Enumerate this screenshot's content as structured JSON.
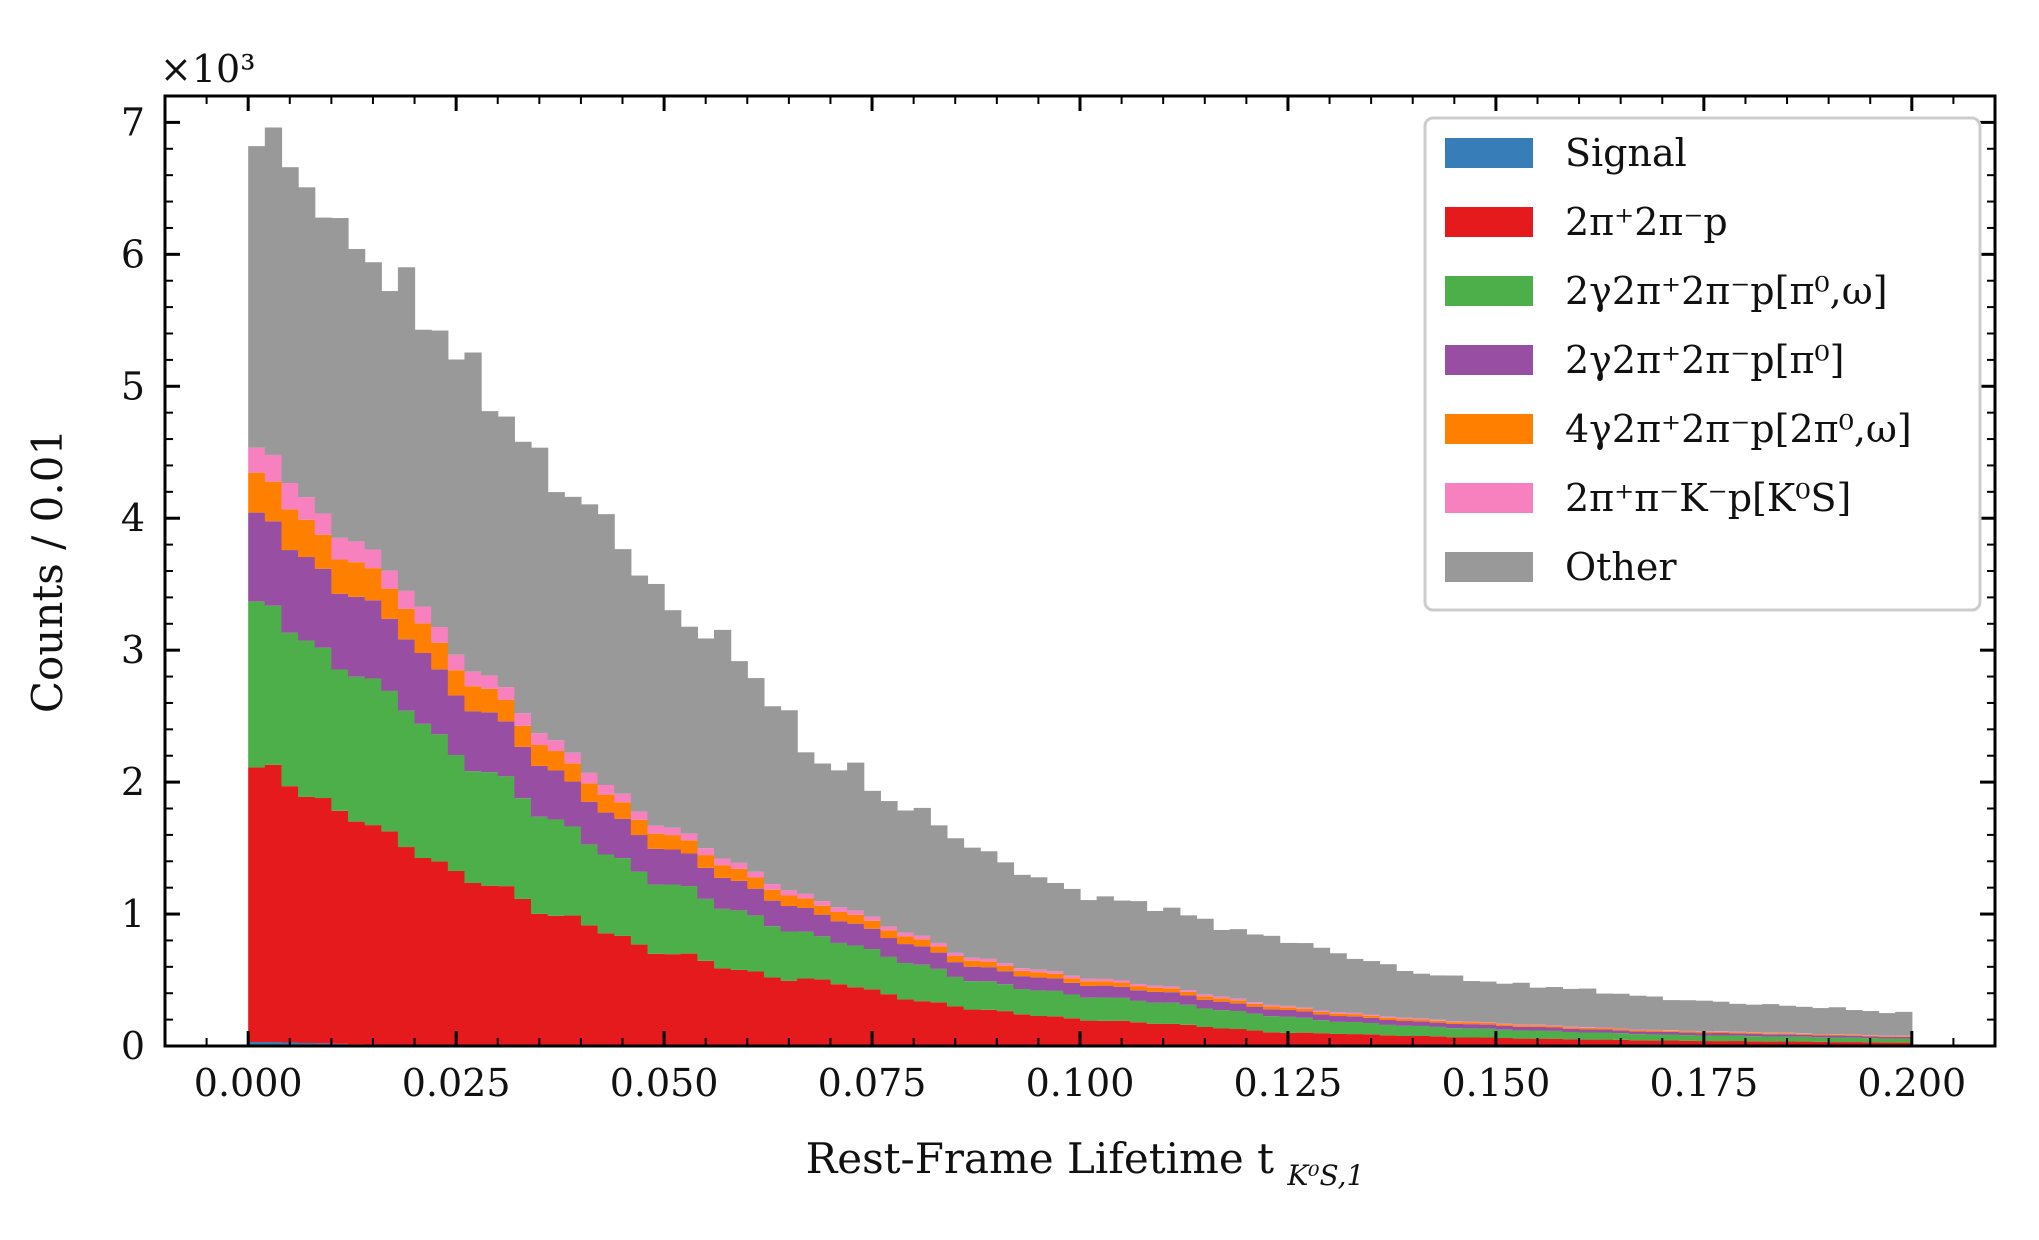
{
  "chart_data": {
    "type": "bar",
    "stacked": true,
    "histogram": true,
    "xlabel": "Rest-Frame Lifetime t",
    "xlabel_subscript": "K⁰S,1",
    "ylabel": "Counts / 0.01",
    "y_multiplier": "×10³",
    "xlim": [
      -0.01,
      0.21
    ],
    "ylim": [
      0,
      7200
    ],
    "x_ticks": [
      "0.000",
      "0.025",
      "0.050",
      "0.075",
      "0.100",
      "0.125",
      "0.150",
      "0.175",
      "0.200"
    ],
    "x_tick_values": [
      0,
      0.025,
      0.05,
      0.075,
      0.1,
      0.125,
      0.15,
      0.175,
      0.2
    ],
    "y_ticks": [
      "0",
      "1",
      "2",
      "3",
      "4",
      "5",
      "6",
      "7"
    ],
    "y_tick_values": [
      0,
      1000,
      2000,
      3000,
      4000,
      5000,
      6000,
      7000
    ],
    "bin_edges_start": 0.0,
    "bin_width": 0.002,
    "n_bins": 100,
    "legend_position": "top-right",
    "totals_anchor": {
      "x": [
        0.0,
        0.002,
        0.004,
        0.006,
        0.008,
        0.01,
        0.012,
        0.014,
        0.016,
        0.018,
        0.02,
        0.024,
        0.028,
        0.032,
        0.036,
        0.04,
        0.044,
        0.048,
        0.052,
        0.056,
        0.06,
        0.064,
        0.068,
        0.072,
        0.076,
        0.08,
        0.086,
        0.092,
        0.1,
        0.11,
        0.12,
        0.124,
        0.13,
        0.14,
        0.15,
        0.16,
        0.17,
        0.18,
        0.19,
        0.198
      ],
      "y": [
        6840,
        6800,
        6850,
        6550,
        6600,
        6050,
        6150,
        6130,
        5780,
        5800,
        5620,
        5350,
        5000,
        4700,
        4320,
        4150,
        3900,
        3530,
        3200,
        3150,
        2850,
        2580,
        2130,
        2150,
        1880,
        1800,
        1550,
        1350,
        1150,
        1050,
        850,
        820,
        720,
        560,
        480,
        430,
        360,
        320,
        290,
        250
      ]
    },
    "series": [
      {
        "name": "Signal",
        "color": "#377eb8",
        "anchor_y": [
          30,
          30,
          28,
          25,
          22,
          18,
          14,
          10,
          6,
          4,
          3,
          2,
          2,
          2,
          2,
          1,
          1,
          1,
          1,
          1,
          1,
          1,
          1,
          1,
          1,
          1,
          1,
          1,
          1,
          1,
          1,
          1,
          1,
          1,
          1,
          1,
          1,
          1,
          1,
          1
        ]
      },
      {
        "name": "2π⁺2π⁻p",
        "color": "#e41a1c",
        "anchor_y": [
          2010,
          2050,
          2100,
          1900,
          1850,
          1760,
          1780,
          1700,
          1600,
          1560,
          1500,
          1320,
          1250,
          1150,
          990,
          950,
          850,
          720,
          700,
          620,
          560,
          510,
          500,
          470,
          400,
          350,
          290,
          250,
          200,
          170,
          120,
          100,
          95,
          75,
          60,
          50,
          40,
          35,
          30,
          25
        ]
      },
      {
        "name": "2γ2π⁺2π⁻p[π⁰,ω]",
        "color": "#4daf4a",
        "anchor_y": [
          1200,
          1250,
          1200,
          1180,
          1140,
          1100,
          1100,
          1120,
          1040,
          1080,
          1050,
          900,
          860,
          800,
          730,
          650,
          580,
          550,
          510,
          470,
          430,
          390,
          330,
          320,
          290,
          280,
          220,
          200,
          180,
          160,
          130,
          125,
          95,
          75,
          65,
          55,
          45,
          40,
          35,
          30
        ]
      },
      {
        "name": "2γ2π⁺2π⁻p[π⁰]",
        "color": "#984ea3",
        "anchor_y": [
          660,
          680,
          640,
          610,
          620,
          590,
          590,
          600,
          560,
          560,
          540,
          470,
          450,
          410,
          370,
          340,
          300,
          280,
          250,
          240,
          210,
          195,
          170,
          165,
          150,
          140,
          110,
          100,
          90,
          80,
          55,
          52,
          45,
          35,
          30,
          25,
          20,
          18,
          15,
          12
        ]
      },
      {
        "name": "4γ2π⁺2π⁻p[2π⁰,ω]",
        "color": "#ff7f00",
        "anchor_y": [
          320,
          300,
          310,
          290,
          270,
          260,
          260,
          250,
          240,
          230,
          225,
          200,
          180,
          165,
          150,
          140,
          130,
          115,
          105,
          95,
          90,
          80,
          70,
          68,
          60,
          55,
          45,
          40,
          35,
          30,
          22,
          20,
          18,
          15,
          12,
          10,
          9,
          8,
          7,
          6
        ]
      },
      {
        "name": "2π⁺π⁻K⁻p[K⁰S]",
        "color": "#f781bf",
        "anchor_y": [
          200,
          190,
          210,
          180,
          170,
          160,
          160,
          150,
          140,
          135,
          130,
          120,
          105,
          95,
          85,
          80,
          70,
          60,
          55,
          50,
          45,
          40,
          35,
          34,
          30,
          28,
          22,
          20,
          18,
          15,
          12,
          11,
          10,
          8,
          6,
          5,
          4,
          4,
          3,
          3
        ]
      },
      {
        "name": "Other",
        "color": "#999999",
        "anchor_y": "remainder"
      }
    ]
  }
}
